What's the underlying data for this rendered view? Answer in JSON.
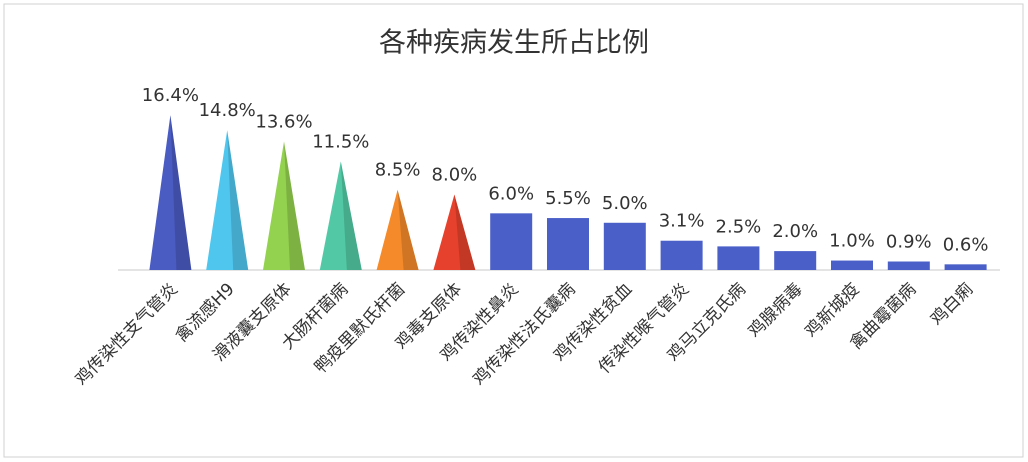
{
  "chart_data": {
    "type": "bar",
    "title": "各种疾病发生所占比例",
    "categories": [
      "鸡传染性支气管炎",
      "禽流感H9",
      "滑液囊支原体",
      "大肠杆菌病",
      "鸭疫里默氏杆菌",
      "鸡毒支原体",
      "鸡传染性鼻炎",
      "鸡传染性法氏囊病",
      "鸡传染性贫血",
      "传染性喉气管炎",
      "鸡马立克氏病",
      "鸡腺病毒",
      "鸡新城疫",
      "禽曲霉菌病",
      "鸡白痢"
    ],
    "values": [
      16.4,
      14.8,
      13.6,
      11.5,
      8.5,
      8.0,
      6.0,
      5.5,
      5.0,
      3.1,
      2.5,
      2.0,
      1.0,
      0.9,
      0.6
    ],
    "value_labels": [
      "16.4%",
      "14.8%",
      "13.6%",
      "11.5%",
      "8.5%",
      "8.0%",
      "6.0%",
      "5.5%",
      "5.0%",
      "3.1%",
      "2.5%",
      "2.0%",
      "1.0%",
      "0.9%",
      "0.6%"
    ],
    "colors": [
      "#4a5bc2",
      "#4fc6ee",
      "#93d24f",
      "#52c9a4",
      "#f48a2a",
      "#e6412c",
      "#4a5fc8",
      "#4a5fc8",
      "#4a5fc8",
      "#4a5fc8",
      "#4a5fc8",
      "#4a5fc8",
      "#4a5fc8",
      "#4a5fc8",
      "#4a5fc8"
    ],
    "mark_shapes": [
      "pyramid",
      "pyramid",
      "pyramid",
      "pyramid",
      "pyramid",
      "pyramid",
      "rect",
      "rect",
      "rect",
      "rect",
      "rect",
      "rect",
      "rect",
      "rect",
      "rect"
    ],
    "ylim": [
      0,
      18
    ],
    "grid": false
  }
}
